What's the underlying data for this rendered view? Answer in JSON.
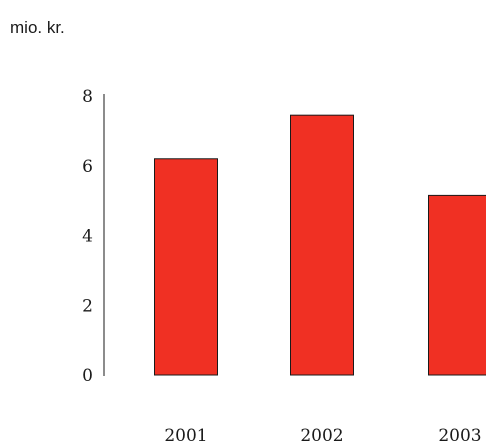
{
  "chart_data": {
    "type": "bar",
    "categories": [
      "2001",
      "2002",
      "2003"
    ],
    "values": [
      6.2,
      7.45,
      5.15
    ],
    "ylabel": "mio. kr.",
    "ylim": [
      0,
      8
    ],
    "yticks": [
      "0",
      "2",
      "4",
      "6",
      "8"
    ],
    "bar_color": "#f03023",
    "grid": false
  }
}
